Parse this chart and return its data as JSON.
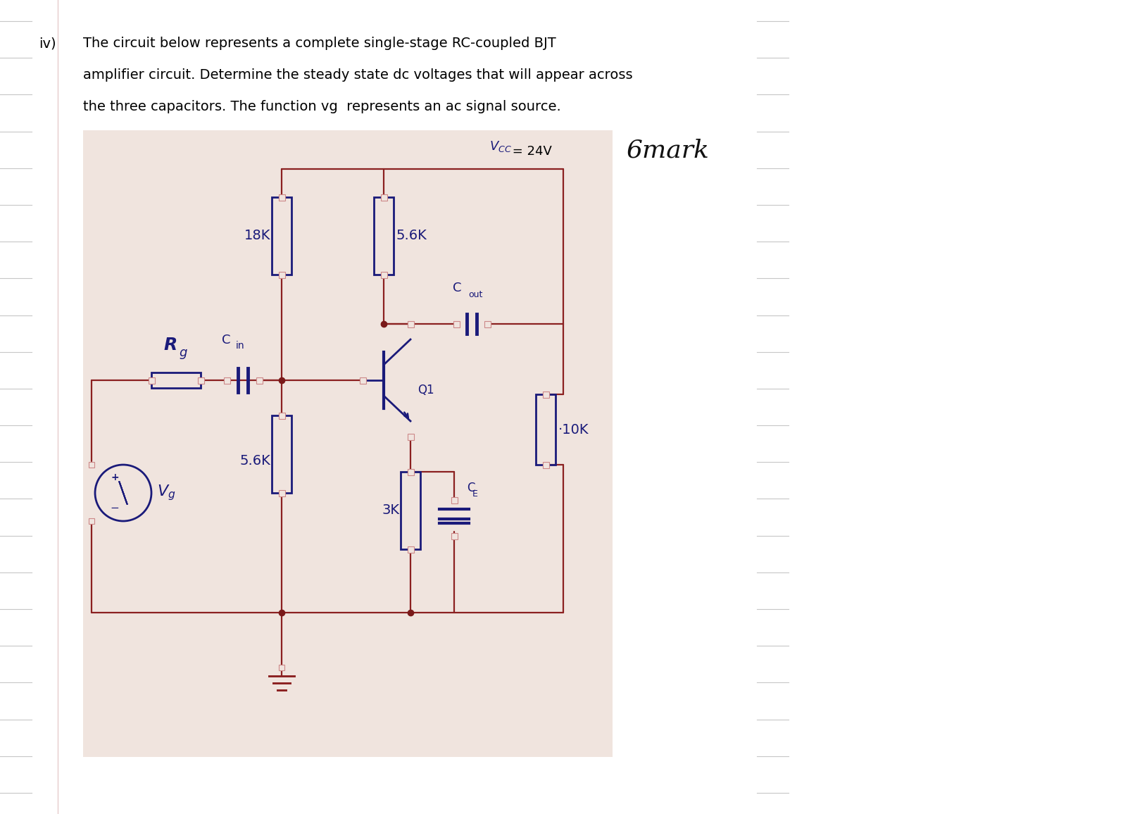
{
  "page_bg": "#ffffff",
  "circuit_bg": "#f0e4de",
  "wire_color": "#8b2020",
  "component_color": "#1a1a7a",
  "node_color": "#7a1a1a",
  "title_color": "#000000",
  "title_line1": "The circuit below represents a complete single-stage RC-coupled BJT",
  "title_line2": "amplifier circuit. Determine the steady state dc voltages that will appear across",
  "title_line3": "the three capacitors. The function vg  represents an ac signal source.",
  "label_iv": "iv)",
  "vcc_text": "V",
  "vcc_sub": "CC",
  "vcc_eq": " = 24V",
  "mark_text": "6mark",
  "R18K": "18K",
  "R56K_top": "5.6K",
  "R56K_bot": "5.6K",
  "R3K": "3K",
  "R10K": "10K",
  "Rg": "R",
  "Rg_sub": "g",
  "Cin": "C",
  "Cin_sub": "in",
  "Cout": "C",
  "Cout_sub": "out",
  "CE": "C",
  "CE_sub": "E",
  "Q1": "Q1",
  "Vg": "V",
  "Vg_sub": "g"
}
